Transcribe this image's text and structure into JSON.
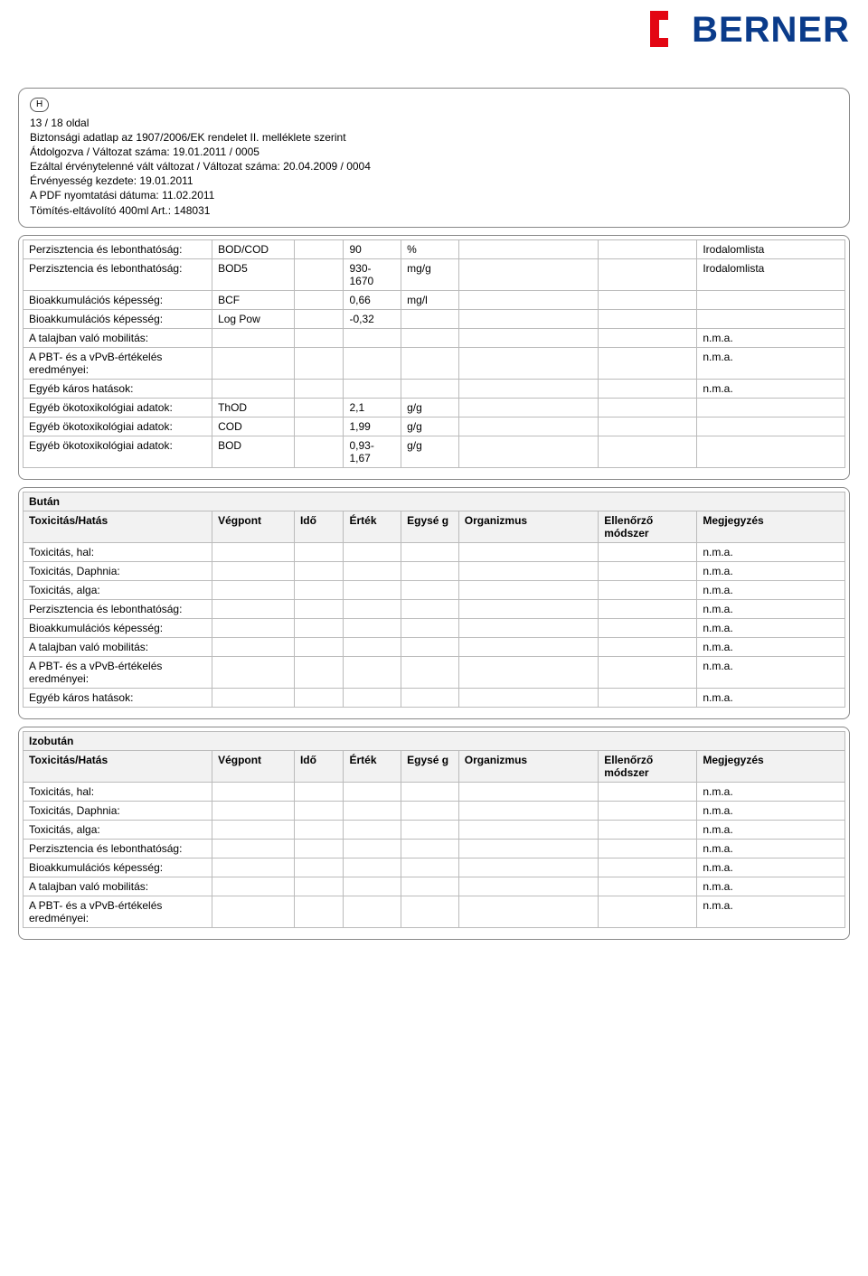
{
  "logo": {
    "text": "BERNER",
    "bracket_color": "#e30613",
    "text_color": "#0a3b8a"
  },
  "header": {
    "h_badge": "H",
    "page_info": "13 / 18 oldal",
    "line1": "Biztonsági adatlap az 1907/2006/EK rendelet II. melléklete szerint",
    "line2": "Átdolgozva / Változat száma: 19.01.2011 / 0005",
    "line3": "Ezáltal érvénytelenné vált változat / Változat száma: 20.04.2009  / 0004",
    "line4": "Érvényesség kezdete: 19.01.2011",
    "line5": "A PDF nyomtatási dátuma: 11.02.2011",
    "line6": "Tömítés-eltávolító 400ml Art.: 148031"
  },
  "table1": {
    "rows": [
      {
        "label": "Perzisztencia és lebonthatóság:",
        "vp": "BOD/COD",
        "ido": "",
        "ert": "90",
        "egy": "%",
        "org": "",
        "ell": "",
        "meg": "Irodalomlista"
      },
      {
        "label": "Perzisztencia és lebonthatóság:",
        "vp": "BOD5",
        "ido": "",
        "ert": "930-1670",
        "egy": "mg/g",
        "org": "",
        "ell": "",
        "meg": "Irodalomlista"
      },
      {
        "label": "Bioakkumulációs képesség:",
        "vp": "BCF",
        "ido": "",
        "ert": "0,66",
        "egy": "mg/l",
        "org": "",
        "ell": "",
        "meg": ""
      },
      {
        "label": "Bioakkumulációs képesség:",
        "vp": "Log Pow",
        "ido": "",
        "ert": "-0,32",
        "egy": "",
        "org": "",
        "ell": "",
        "meg": ""
      },
      {
        "label": "A talajban való mobilitás:",
        "vp": "",
        "ido": "",
        "ert": "",
        "egy": "",
        "org": "",
        "ell": "",
        "meg": "n.m.a."
      },
      {
        "label": "A PBT- és a vPvB-értékelés eredményei:",
        "vp": "",
        "ido": "",
        "ert": "",
        "egy": "",
        "org": "",
        "ell": "",
        "meg": "n.m.a."
      },
      {
        "label": "Egyéb káros hatások:",
        "vp": "",
        "ido": "",
        "ert": "",
        "egy": "",
        "org": "",
        "ell": "",
        "meg": "n.m.a."
      },
      {
        "label": "Egyéb ökotoxikológiai adatok:",
        "vp": "ThOD",
        "ido": "",
        "ert": "2,1",
        "egy": "g/g",
        "org": "",
        "ell": "",
        "meg": ""
      },
      {
        "label": "Egyéb ökotoxikológiai adatok:",
        "vp": "COD",
        "ido": "",
        "ert": "1,99",
        "egy": "g/g",
        "org": "",
        "ell": "",
        "meg": ""
      },
      {
        "label": "Egyéb ökotoxikológiai adatok:",
        "vp": "BOD",
        "ido": "",
        "ert": "0,93-1,67",
        "egy": "g/g",
        "org": "",
        "ell": "",
        "meg": ""
      }
    ]
  },
  "labels_header": {
    "c0": "Toxicitás/Hatás",
    "c1": "Végpont",
    "c2": "Idő",
    "c3": "Érték",
    "c4": "Egysé g",
    "c5": "Organizmus",
    "c6": "Ellenőrző módszer",
    "c7": "Megjegyzés"
  },
  "butan": {
    "title": "Bután",
    "rows": [
      {
        "label": "Toxicitás, hal:",
        "meg": "n.m.a."
      },
      {
        "label": "Toxicitás, Daphnia:",
        "meg": "n.m.a."
      },
      {
        "label": "Toxicitás, alga:",
        "meg": "n.m.a."
      },
      {
        "label": "Perzisztencia és lebonthatóság:",
        "meg": "n.m.a."
      },
      {
        "label": "Bioakkumulációs képesség:",
        "meg": "n.m.a."
      },
      {
        "label": "A talajban való mobilitás:",
        "meg": "n.m.a."
      },
      {
        "label": "A PBT- és a vPvB-értékelés eredményei:",
        "meg": "n.m.a."
      },
      {
        "label": "Egyéb káros hatások:",
        "meg": "n.m.a."
      }
    ]
  },
  "izobutan": {
    "title": "Izobután",
    "rows": [
      {
        "label": "Toxicitás, hal:",
        "meg": "n.m.a."
      },
      {
        "label": "Toxicitás, Daphnia:",
        "meg": "n.m.a."
      },
      {
        "label": "Toxicitás, alga:",
        "meg": "n.m.a."
      },
      {
        "label": "Perzisztencia és lebonthatóság:",
        "meg": "n.m.a."
      },
      {
        "label": "Bioakkumulációs képesség:",
        "meg": "n.m.a."
      },
      {
        "label": "A talajban való mobilitás:",
        "meg": "n.m.a."
      },
      {
        "label": "A PBT- és a vPvB-értékelés eredményei:",
        "meg": "n.m.a."
      }
    ]
  }
}
